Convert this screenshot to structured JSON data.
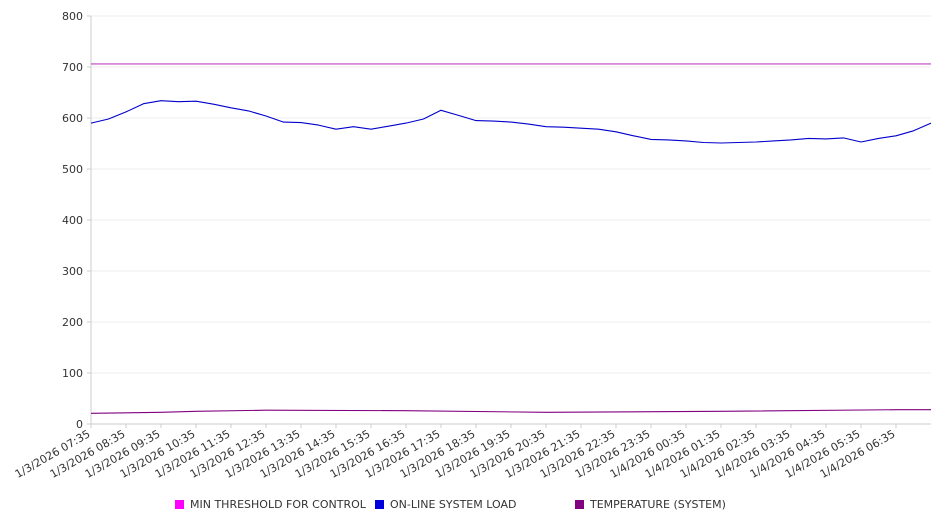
{
  "chart_data": {
    "type": "line",
    "title": "",
    "xlabel": "",
    "ylabel": "",
    "ylim": [
      0,
      800
    ],
    "yticks": [
      0,
      100,
      200,
      300,
      400,
      500,
      600,
      700,
      800
    ],
    "grid": true,
    "legend_position": "bottom",
    "x_tick_labels": [
      "1/3/2026 07:35",
      "1/3/2026 08:35",
      "1/3/2026 09:35",
      "1/3/2026 10:35",
      "1/3/2026 11:35",
      "1/3/2026 12:35",
      "1/3/2026 13:35",
      "1/3/2026 14:35",
      "1/3/2026 15:35",
      "1/3/2026 16:35",
      "1/3/2026 17:35",
      "1/3/2026 18:35",
      "1/3/2026 19:35",
      "1/3/2026 20:35",
      "1/3/2026 21:35",
      "1/3/2026 22:35",
      "1/3/2026 23:35",
      "1/4/2026 00:35",
      "1/4/2026 01:35",
      "1/4/2026 02:35",
      "1/4/2026 03:35",
      "1/4/2026 04:35",
      "1/4/2026 05:35",
      "1/4/2026 06:35"
    ],
    "x_end": "1/4/2026 07:35",
    "series": [
      {
        "name": "MIN THRESHOLD FOR CONTROL",
        "color": "#ff00ff",
        "line_color": "#c040c0",
        "x": [
          "1/3/2026 07:35",
          "1/4/2026 07:35"
        ],
        "values": [
          706,
          706
        ]
      },
      {
        "name": "ON-LINE SYSTEM LOAD",
        "color": "#0000dd",
        "line_color": "#0000cc",
        "x": [
          "1/3/2026 07:35",
          "1/3/2026 08:05",
          "1/3/2026 08:35",
          "1/3/2026 09:05",
          "1/3/2026 09:35",
          "1/3/2026 10:05",
          "1/3/2026 10:35",
          "1/3/2026 11:05",
          "1/3/2026 11:35",
          "1/3/2026 12:05",
          "1/3/2026 12:35",
          "1/3/2026 13:05",
          "1/3/2026 13:35",
          "1/3/2026 14:05",
          "1/3/2026 14:35",
          "1/3/2026 15:05",
          "1/3/2026 15:35",
          "1/3/2026 16:05",
          "1/3/2026 16:35",
          "1/3/2026 17:05",
          "1/3/2026 17:35",
          "1/3/2026 18:05",
          "1/3/2026 18:35",
          "1/3/2026 19:05",
          "1/3/2026 19:35",
          "1/3/2026 20:05",
          "1/3/2026 20:35",
          "1/3/2026 21:05",
          "1/3/2026 21:35",
          "1/3/2026 22:05",
          "1/3/2026 22:35",
          "1/3/2026 23:05",
          "1/3/2026 23:35",
          "1/4/2026 00:05",
          "1/4/2026 00:35",
          "1/4/2026 01:05",
          "1/4/2026 01:35",
          "1/4/2026 02:05",
          "1/4/2026 02:35",
          "1/4/2026 03:05",
          "1/4/2026 03:35",
          "1/4/2026 04:05",
          "1/4/2026 04:35",
          "1/4/2026 05:05",
          "1/4/2026 05:35",
          "1/4/2026 06:05",
          "1/4/2026 06:35",
          "1/4/2026 07:05",
          "1/4/2026 07:35"
        ],
        "values": [
          590,
          598,
          612,
          628,
          634,
          632,
          633,
          627,
          620,
          614,
          604,
          592,
          591,
          586,
          578,
          583,
          578,
          584,
          590,
          598,
          615,
          605,
          595,
          594,
          592,
          588,
          583,
          582,
          580,
          578,
          573,
          565,
          558,
          557,
          555,
          552,
          551,
          552,
          553,
          555,
          557,
          560,
          559,
          561,
          553,
          560,
          565,
          575,
          590
        ]
      },
      {
        "name": "TEMPERATURE (SYSTEM)",
        "color": "#800080",
        "line_color": "#800080",
        "x": [
          "1/3/2026 07:35",
          "1/3/2026 09:35",
          "1/3/2026 10:35",
          "1/3/2026 12:35",
          "1/3/2026 16:35",
          "1/3/2026 20:35",
          "1/4/2026 01:35",
          "1/4/2026 06:35",
          "1/4/2026 07:35"
        ],
        "values": [
          21,
          23,
          25,
          27,
          26,
          23,
          25,
          28,
          28
        ]
      }
    ]
  }
}
